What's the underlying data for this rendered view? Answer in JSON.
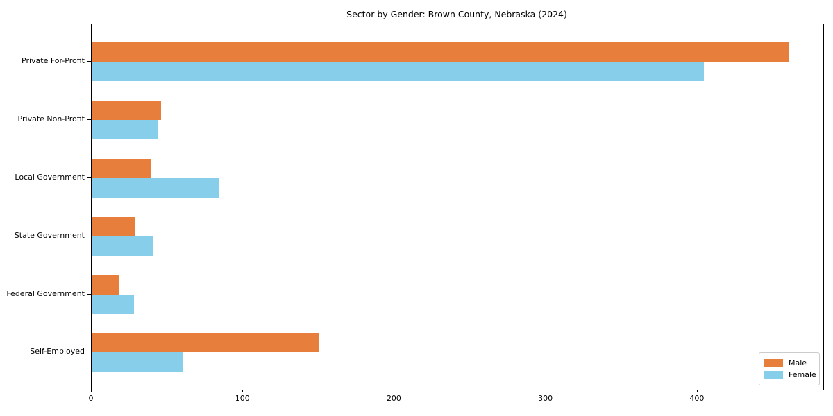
{
  "chart_data": {
    "type": "bar",
    "orientation": "horizontal",
    "title": "Sector by Gender: Brown County, Nebraska (2024)",
    "categories": [
      "Private For-Profit",
      "Private Non-Profit",
      "Local Government",
      "State Government",
      "Federal Government",
      "Self-Employed"
    ],
    "series": [
      {
        "name": "Male",
        "color": "#e87e3c",
        "values": [
          460,
          46,
          39,
          29,
          18,
          150
        ]
      },
      {
        "name": "Female",
        "color": "#87ceeb",
        "values": [
          404,
          44,
          84,
          41,
          28,
          60
        ]
      }
    ],
    "xlabel": "",
    "ylabel": "",
    "xlim": [
      0,
      483
    ],
    "xticks": [
      0,
      100,
      200,
      300,
      400
    ],
    "grid": false,
    "legend": {
      "position": "lower right"
    },
    "colors": {
      "spine": "#000000",
      "text": "#000000",
      "legend_border": "#cccccc",
      "background": "#ffffff"
    }
  }
}
